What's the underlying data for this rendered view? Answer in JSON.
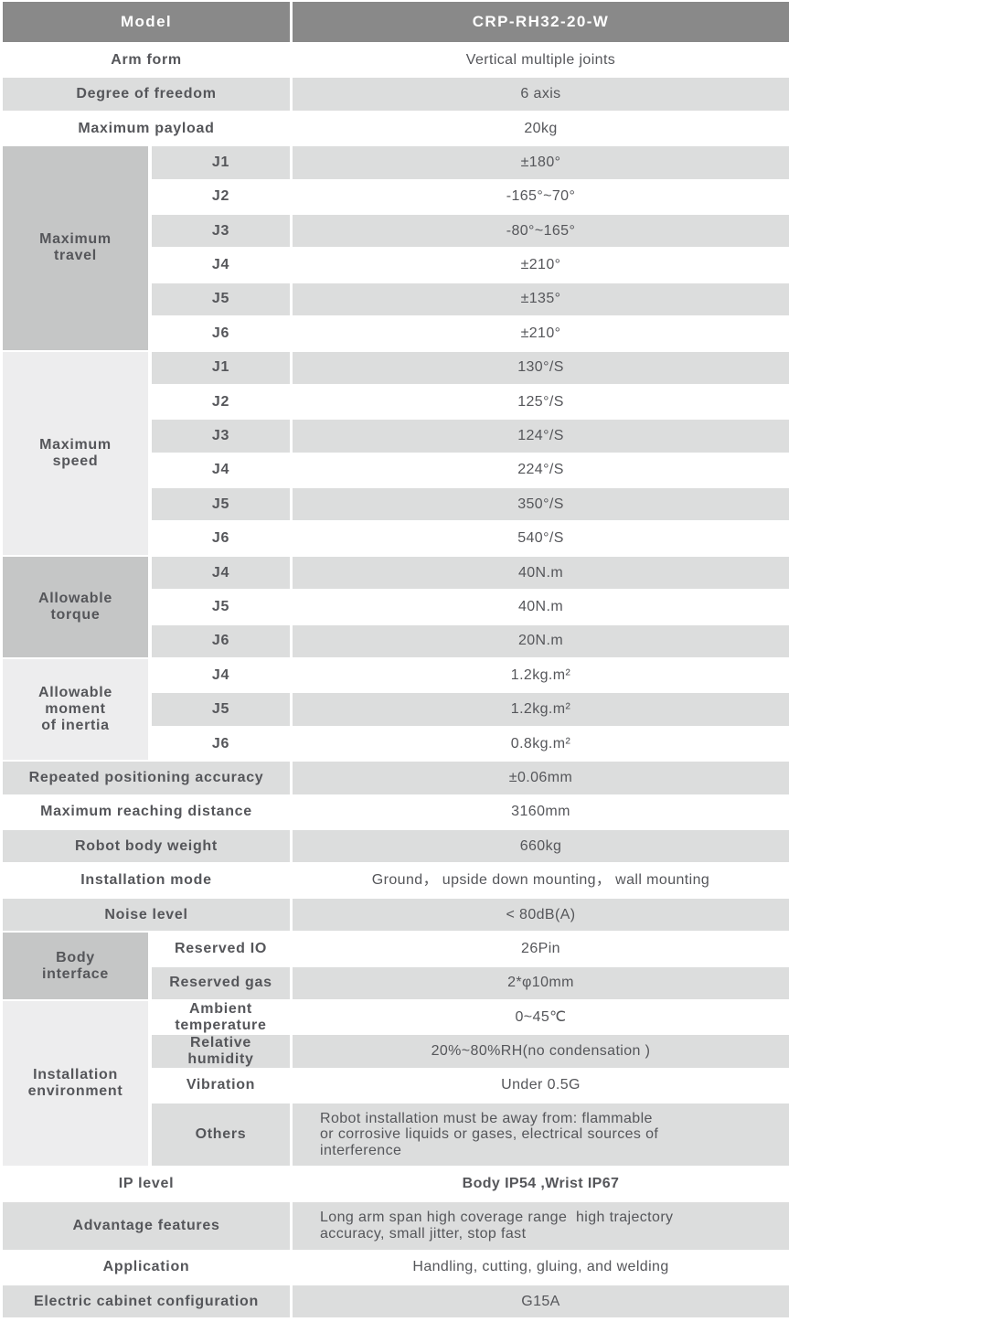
{
  "header": {
    "model_label": "Model",
    "model_value": "CRP-RH32-20-W"
  },
  "general": [
    {
      "label": "Arm form",
      "value": "Vertical multiple joints"
    },
    {
      "label": "Degree of freedom",
      "value": "6 axis"
    },
    {
      "label": "Maximum payload",
      "value": "20kg"
    }
  ],
  "maximum_travel": {
    "label": "Maximum\ntravel",
    "rows": [
      {
        "joint": "J1",
        "value": "±180°"
      },
      {
        "joint": "J2",
        "value": "-165°~70°"
      },
      {
        "joint": "J3",
        "value": "-80°~165°"
      },
      {
        "joint": "J4",
        "value": "±210°"
      },
      {
        "joint": "J5",
        "value": "±135°"
      },
      {
        "joint": "J6",
        "value": "±210°"
      }
    ]
  },
  "maximum_speed": {
    "label": "Maximum\nspeed",
    "rows": [
      {
        "joint": "J1",
        "value": "130°/S"
      },
      {
        "joint": "J2",
        "value": "125°/S"
      },
      {
        "joint": "J3",
        "value": "124°/S"
      },
      {
        "joint": "J4",
        "value": "224°/S"
      },
      {
        "joint": "J5",
        "value": "350°/S"
      },
      {
        "joint": "J6",
        "value": "540°/S"
      }
    ]
  },
  "allowable_torque": {
    "label": "Allowable\ntorque",
    "rows": [
      {
        "joint": "J4",
        "value": "40N.m"
      },
      {
        "joint": "J5",
        "value": "40N.m"
      },
      {
        "joint": "J6",
        "value": "20N.m"
      }
    ]
  },
  "allowable_moment_of_inertia": {
    "label": "Allowable\nmoment\nof inertia",
    "rows": [
      {
        "joint": "J4",
        "value": "1.2kg.m²"
      },
      {
        "joint": "J5",
        "value": "1.2kg.m²"
      },
      {
        "joint": "J6",
        "value": "0.8kg.m²"
      }
    ]
  },
  "specs": [
    {
      "label": "Repeated positioning accuracy",
      "value": "±0.06mm"
    },
    {
      "label": "Maximum reaching distance",
      "value": "3160mm"
    },
    {
      "label": "Robot body weight",
      "value": "660kg"
    },
    {
      "label": "Installation mode",
      "value": "Ground， upside down mounting， wall mounting"
    },
    {
      "label": "Noise level",
      "value": "< 80dB(A)"
    }
  ],
  "body_interface": {
    "label": "Body\ninterface",
    "rows": [
      {
        "name": "Reserved IO",
        "value": "26Pin"
      },
      {
        "name": "Reserved gas",
        "value": "2*φ10mm"
      }
    ]
  },
  "installation_environment": {
    "label": "Installation\nenvironment",
    "rows": [
      {
        "name": "Ambient\ntemperature",
        "value": "0~45℃"
      },
      {
        "name": "Relative\nhumidity",
        "value": "20%~80%RH(no condensation )"
      },
      {
        "name": "Vibration",
        "value": "Under 0.5G"
      },
      {
        "name": "Others",
        "value": "Robot installation must be away from: flammable\nor corrosive liquids or gases, electrical sources of\ninterference"
      }
    ]
  },
  "footer": [
    {
      "label": "IP level",
      "value": "Body IP54 ,Wrist IP67"
    },
    {
      "label": "Advantage features",
      "value": "Long arm span high coverage range  high trajectory\naccuracy, small jitter, stop fast"
    },
    {
      "label": "Application",
      "value": "Handling, cutting, gluing, and welding"
    },
    {
      "label": "Electric cabinet configuration",
      "value": "G15A"
    }
  ],
  "colors": {
    "header_bg": "#898989",
    "header_text": "#ffffff",
    "row_gray": "#dcdddd",
    "group_medium_gray": "#c5c6c6",
    "group_light_gray": "#ededee",
    "text": "#55565a"
  }
}
